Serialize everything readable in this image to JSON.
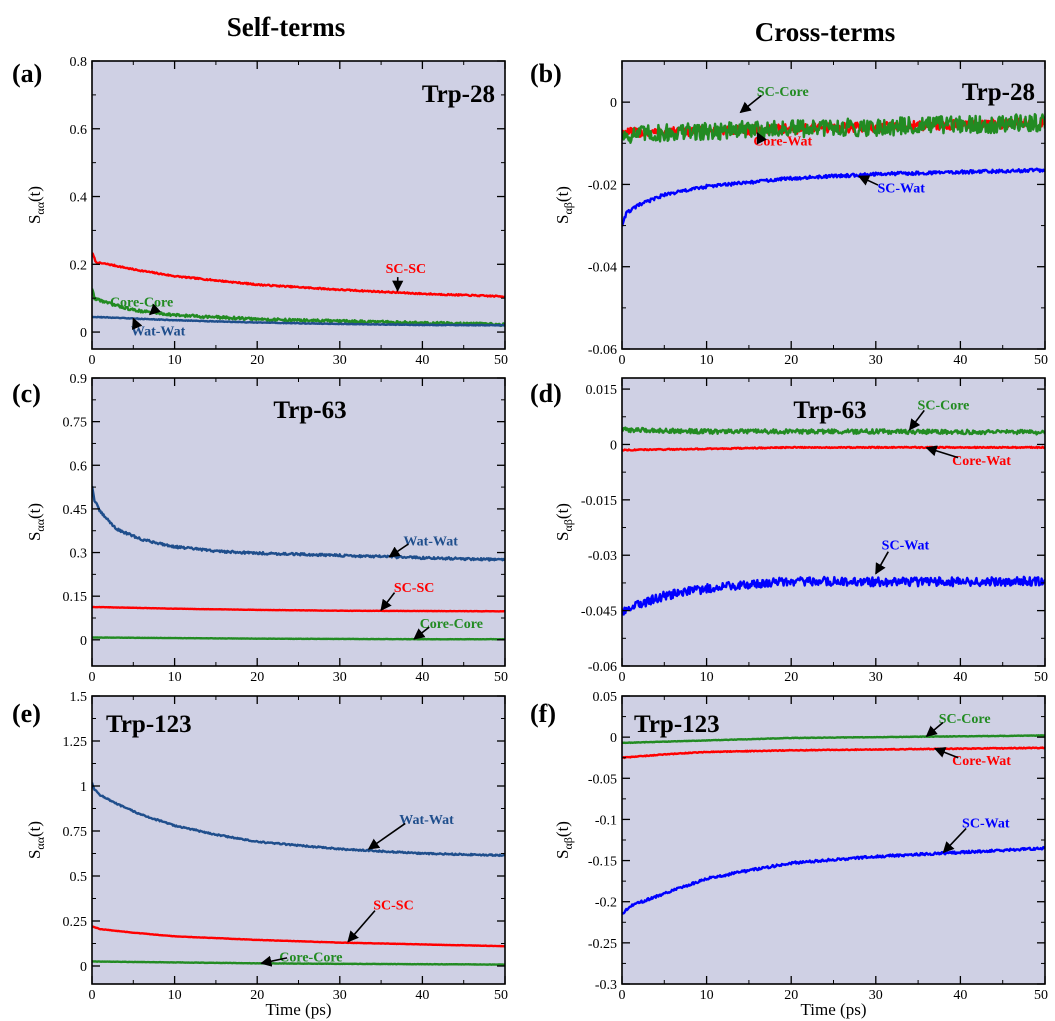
{
  "figure": {
    "column_titles": [
      "Self-terms",
      "Cross-terms"
    ],
    "colors": {
      "background": "#cfd0e4",
      "red": "#ff0000",
      "green": "#228b22",
      "blue": "#0000ff",
      "navy": "#1f4e8c",
      "black": "#000000"
    }
  },
  "chart_data": [
    {
      "type": "line",
      "panel": "(a)",
      "title": "Trp-28",
      "ylabel_main": "S",
      "ylabel_sub": "αα",
      "ylabel_tail": "(t)",
      "xlabel": "",
      "xlim": [
        0,
        50
      ],
      "ylim": [
        -0.05,
        0.8
      ],
      "yticks": [
        0,
        0.2,
        0.4,
        0.6,
        0.8
      ],
      "ytick_labels": [
        "0",
        "0.2",
        "0.4",
        "0.6",
        "0.8"
      ],
      "xticks": [
        0,
        10,
        20,
        30,
        40,
        50
      ],
      "xtick_labels": [
        "0",
        "10",
        "20",
        "30",
        "40",
        "50"
      ],
      "series": [
        {
          "name": "SC-SC",
          "color": "red",
          "noise": 0.002,
          "points": [
            [
              0,
              0.235
            ],
            [
              0.5,
              0.205
            ],
            [
              2,
              0.2
            ],
            [
              5,
              0.185
            ],
            [
              10,
              0.165
            ],
            [
              20,
              0.14
            ],
            [
              30,
              0.125
            ],
            [
              40,
              0.113
            ],
            [
              50,
              0.105
            ]
          ]
        },
        {
          "name": "Core-Core",
          "color": "green",
          "noise": 0.004,
          "points": [
            [
              0,
              0.13
            ],
            [
              0.3,
              0.1
            ],
            [
              2,
              0.085
            ],
            [
              5,
              0.065
            ],
            [
              10,
              0.05
            ],
            [
              20,
              0.038
            ],
            [
              30,
              0.032
            ],
            [
              40,
              0.027
            ],
            [
              50,
              0.022
            ]
          ]
        },
        {
          "name": "Wat-Wat",
          "color": "navy",
          "noise": 0.001,
          "points": [
            [
              0,
              0.045
            ],
            [
              5,
              0.04
            ],
            [
              10,
              0.035
            ],
            [
              20,
              0.028
            ],
            [
              30,
              0.024
            ],
            [
              40,
              0.021
            ],
            [
              50,
              0.02
            ]
          ]
        }
      ],
      "annotations": [
        {
          "text": "SC-SC",
          "color": "red",
          "tx": 38,
          "ty": 0.175,
          "ax": 37,
          "ay": 0.122
        },
        {
          "text": "Core-Core",
          "color": "green",
          "tx": 6,
          "ty": 0.075,
          "ax": 7,
          "ay": 0.052
        },
        {
          "text": "Wat-Wat",
          "color": "navy",
          "tx": 8,
          "ty": -0.01,
          "ax": 5,
          "ay": 0.04
        }
      ]
    },
    {
      "type": "line",
      "panel": "(b)",
      "title": "Trp-28",
      "ylabel_main": "S",
      "ylabel_sub": "αβ",
      "ylabel_tail": "(t)",
      "xlabel": "",
      "xlim": [
        0,
        50
      ],
      "ylim": [
        -0.06,
        0.01
      ],
      "yticks": [
        -0.06,
        -0.04,
        -0.02,
        0
      ],
      "ytick_labels": [
        "-0.06",
        "-0.04",
        "-0.02",
        "0"
      ],
      "xticks": [
        0,
        10,
        20,
        30,
        40,
        50
      ],
      "xtick_labels": [
        "0",
        "10",
        "20",
        "30",
        "40",
        "50"
      ],
      "series": [
        {
          "name": "Core-Wat",
          "color": "red",
          "noise": 0.0012,
          "points": [
            [
              0,
              -0.0075
            ],
            [
              10,
              -0.007
            ],
            [
              20,
              -0.0065
            ],
            [
              30,
              -0.006
            ],
            [
              40,
              -0.0055
            ],
            [
              50,
              -0.005
            ]
          ]
        },
        {
          "name": "SC-Core",
          "color": "green",
          "noise": 0.0022,
          "points": [
            [
              0,
              -0.008
            ],
            [
              10,
              -0.007
            ],
            [
              20,
              -0.0065
            ],
            [
              30,
              -0.006
            ],
            [
              40,
              -0.0055
            ],
            [
              50,
              -0.005
            ]
          ]
        },
        {
          "name": "SC-Wat",
          "color": "blue",
          "noise": 0.0004,
          "points": [
            [
              0,
              -0.03
            ],
            [
              0.5,
              -0.027
            ],
            [
              2,
              -0.025
            ],
            [
              5,
              -0.0225
            ],
            [
              10,
              -0.0205
            ],
            [
              20,
              -0.0185
            ],
            [
              30,
              -0.0175
            ],
            [
              40,
              -0.017
            ],
            [
              50,
              -0.0165
            ]
          ]
        }
      ],
      "annotations": [
        {
          "text": "SC-Core",
          "color": "green",
          "tx": 19,
          "ty": 0.0015,
          "ax": 14,
          "ay": -0.0025
        },
        {
          "text": "Core-Wat",
          "color": "red",
          "tx": 19,
          "ty": -0.0105,
          "ax": 16,
          "ay": -0.0075
        },
        {
          "text": "SC-Wat",
          "color": "blue",
          "tx": 33,
          "ty": -0.022,
          "ax": 28,
          "ay": -0.018
        }
      ]
    },
    {
      "type": "line",
      "panel": "(c)",
      "title": "Trp-63",
      "ylabel_main": "S",
      "ylabel_sub": "αα",
      "ylabel_tail": "(t)",
      "xlabel": "",
      "xlim": [
        0,
        50
      ],
      "ylim": [
        -0.09,
        0.9
      ],
      "yticks": [
        0,
        0.15,
        0.3,
        0.45,
        0.6,
        0.75,
        0.9
      ],
      "ytick_labels": [
        "0",
        "0.15",
        "0.3",
        "0.45",
        "0.6",
        "0.75",
        "0.9"
      ],
      "xticks": [
        0,
        10,
        20,
        30,
        40,
        50
      ],
      "xtick_labels": [
        "0",
        "10",
        "20",
        "30",
        "40",
        "50"
      ],
      "series": [
        {
          "name": "Wat-Wat",
          "color": "navy",
          "noise": 0.004,
          "points": [
            [
              0,
              0.53
            ],
            [
              0.3,
              0.48
            ],
            [
              1,
              0.44
            ],
            [
              3,
              0.38
            ],
            [
              6,
              0.345
            ],
            [
              10,
              0.32
            ],
            [
              15,
              0.305
            ],
            [
              20,
              0.298
            ],
            [
              30,
              0.29
            ],
            [
              40,
              0.282
            ],
            [
              50,
              0.275
            ]
          ]
        },
        {
          "name": "SC-SC",
          "color": "red",
          "noise": 0.0005,
          "points": [
            [
              0,
              0.113
            ],
            [
              10,
              0.107
            ],
            [
              20,
              0.103
            ],
            [
              30,
              0.1
            ],
            [
              40,
              0.099
            ],
            [
              50,
              0.098
            ]
          ]
        },
        {
          "name": "Core-Core",
          "color": "green",
          "noise": 0.0005,
          "points": [
            [
              0,
              0.008
            ],
            [
              10,
              0.006
            ],
            [
              20,
              0.004
            ],
            [
              30,
              0.003
            ],
            [
              40,
              0.002
            ],
            [
              50,
              0.002
            ]
          ]
        }
      ],
      "annotations": [
        {
          "text": "Wat-Wat",
          "color": "navy",
          "tx": 41,
          "ty": 0.325,
          "ax": 36,
          "ay": 0.285
        },
        {
          "text": "SC-SC",
          "color": "red",
          "tx": 39,
          "ty": 0.165,
          "ax": 35,
          "ay": 0.102
        },
        {
          "text": "Core-Core",
          "color": "green",
          "tx": 43.5,
          "ty": 0.04,
          "ax": 39,
          "ay": 0.003
        }
      ]
    },
    {
      "type": "line",
      "panel": "(d)",
      "title": "Trp-63",
      "ylabel_main": "S",
      "ylabel_sub": "αβ",
      "ylabel_tail": "(t)",
      "xlabel": "",
      "xlim": [
        0,
        50
      ],
      "ylim": [
        -0.06,
        0.018
      ],
      "yticks": [
        -0.06,
        -0.045,
        -0.03,
        -0.015,
        0,
        0.015
      ],
      "ytick_labels": [
        "-0.06",
        "-0.045",
        "-0.03",
        "-0.015",
        "0",
        "0.015"
      ],
      "xticks": [
        0,
        10,
        20,
        30,
        40,
        50
      ],
      "xtick_labels": [
        "0",
        "10",
        "20",
        "30",
        "40",
        "50"
      ],
      "series": [
        {
          "name": "SC-Core",
          "color": "green",
          "noise": 0.0006,
          "points": [
            [
              0,
              0.004
            ],
            [
              10,
              0.0035
            ],
            [
              20,
              0.0035
            ],
            [
              30,
              0.0035
            ],
            [
              40,
              0.0034
            ],
            [
              50,
              0.0033
            ]
          ]
        },
        {
          "name": "Core-Wat",
          "color": "red",
          "noise": 0.00015,
          "points": [
            [
              0,
              -0.0015
            ],
            [
              10,
              -0.0012
            ],
            [
              20,
              -0.0008
            ],
            [
              30,
              -0.0008
            ],
            [
              40,
              -0.0008
            ],
            [
              50,
              -0.0008
            ]
          ]
        },
        {
          "name": "SC-Wat",
          "color": "blue",
          "noise": 0.0012,
          "points": [
            [
              0,
              -0.046
            ],
            [
              1,
              -0.044
            ],
            [
              5,
              -0.041
            ],
            [
              10,
              -0.039
            ],
            [
              15,
              -0.0378
            ],
            [
              20,
              -0.037
            ],
            [
              30,
              -0.0372
            ],
            [
              40,
              -0.0372
            ],
            [
              50,
              -0.037
            ]
          ]
        }
      ],
      "annotations": [
        {
          "text": "SC-Core",
          "color": "green",
          "tx": 38,
          "ty": 0.0095,
          "ax": 34,
          "ay": 0.004
        },
        {
          "text": "Core-Wat",
          "color": "red",
          "tx": 42.5,
          "ty": -0.0055,
          "ax": 36,
          "ay": -0.0009
        },
        {
          "text": "SC-Wat",
          "color": "blue",
          "tx": 33.5,
          "ty": -0.0285,
          "ax": 30,
          "ay": -0.035
        }
      ]
    },
    {
      "type": "line",
      "panel": "(e)",
      "title": "Trp-123",
      "ylabel_main": "S",
      "ylabel_sub": "αα",
      "ylabel_tail": "(t)",
      "xlabel": "Time (ps)",
      "xlim": [
        0,
        50
      ],
      "ylim": [
        -0.1,
        1.5
      ],
      "yticks": [
        0,
        0.25,
        0.5,
        0.75,
        1,
        1.25,
        1.5
      ],
      "ytick_labels": [
        "0",
        "0.25",
        "0.5",
        "0.75",
        "1",
        "1.25",
        "1.5"
      ],
      "xticks": [
        0,
        10,
        20,
        30,
        40,
        50
      ],
      "xtick_labels": [
        "0",
        "10",
        "20",
        "30",
        "40",
        "50"
      ],
      "series": [
        {
          "name": "Wat-Wat",
          "color": "navy",
          "noise": 0.004,
          "points": [
            [
              0,
              1.02
            ],
            [
              0.3,
              0.98
            ],
            [
              1,
              0.95
            ],
            [
              3,
              0.9
            ],
            [
              6,
              0.84
            ],
            [
              10,
              0.78
            ],
            [
              15,
              0.73
            ],
            [
              20,
              0.69
            ],
            [
              30,
              0.65
            ],
            [
              40,
              0.625
            ],
            [
              50,
              0.615
            ]
          ]
        },
        {
          "name": "SC-SC",
          "color": "red",
          "noise": 0.001,
          "points": [
            [
              0,
              0.22
            ],
            [
              1,
              0.205
            ],
            [
              5,
              0.185
            ],
            [
              10,
              0.165
            ],
            [
              20,
              0.145
            ],
            [
              30,
              0.13
            ],
            [
              40,
              0.12
            ],
            [
              50,
              0.11
            ]
          ]
        },
        {
          "name": "Core-Core",
          "color": "green",
          "noise": 0.001,
          "points": [
            [
              0,
              0.025
            ],
            [
              10,
              0.02
            ],
            [
              20,
              0.015
            ],
            [
              30,
              0.012
            ],
            [
              40,
              0.01
            ],
            [
              50,
              0.008
            ]
          ]
        }
      ],
      "annotations": [
        {
          "text": "Wat-Wat",
          "color": "navy",
          "tx": 40.5,
          "ty": 0.79,
          "ax": 33.5,
          "ay": 0.65
        },
        {
          "text": "SC-SC",
          "color": "red",
          "tx": 36.5,
          "ty": 0.315,
          "ax": 31,
          "ay": 0.135
        },
        {
          "text": "Core-Core",
          "color": "green",
          "tx": 26.5,
          "ty": 0.025,
          "ax": 20.5,
          "ay": 0.015
        }
      ]
    },
    {
      "type": "line",
      "panel": "(f)",
      "title": "Trp-123",
      "ylabel_main": "S",
      "ylabel_sub": "αβ",
      "ylabel_tail": "(t)",
      "xlabel": "Time (ps)",
      "xlim": [
        0,
        50
      ],
      "ylim": [
        -0.3,
        0.05
      ],
      "yticks": [
        -0.3,
        -0.25,
        -0.2,
        -0.15,
        -0.1,
        -0.05,
        0,
        0.05
      ],
      "ytick_labels": [
        "-0.3",
        "-0.25",
        "-0.2",
        "-0.15",
        "-0.1",
        "-0.05",
        "0",
        "0.05"
      ],
      "xticks": [
        0,
        10,
        20,
        30,
        40,
        50
      ],
      "xtick_labels": [
        "0",
        "10",
        "20",
        "30",
        "40",
        "50"
      ],
      "series": [
        {
          "name": "SC-Core",
          "color": "green",
          "noise": 0.0003,
          "points": [
            [
              0,
              -0.007
            ],
            [
              10,
              -0.004
            ],
            [
              20,
              -0.001
            ],
            [
              30,
              0.0
            ],
            [
              40,
              0.001
            ],
            [
              50,
              0.002
            ]
          ]
        },
        {
          "name": "Core-Wat",
          "color": "red",
          "noise": 0.0005,
          "points": [
            [
              0,
              -0.025
            ],
            [
              5,
              -0.021
            ],
            [
              10,
              -0.018
            ],
            [
              20,
              -0.016
            ],
            [
              30,
              -0.015
            ],
            [
              40,
              -0.014
            ],
            [
              50,
              -0.013
            ]
          ]
        },
        {
          "name": "SC-Wat",
          "color": "blue",
          "noise": 0.0015,
          "points": [
            [
              0,
              -0.215
            ],
            [
              1,
              -0.205
            ],
            [
              5,
              -0.19
            ],
            [
              10,
              -0.172
            ],
            [
              15,
              -0.162
            ],
            [
              20,
              -0.153
            ],
            [
              30,
              -0.145
            ],
            [
              40,
              -0.14
            ],
            [
              50,
              -0.135
            ]
          ]
        }
      ],
      "annotations": [
        {
          "text": "SC-Core",
          "color": "green",
          "tx": 40.5,
          "ty": 0.017,
          "ax": 36,
          "ay": 0.001
        },
        {
          "text": "Core-Wat",
          "color": "red",
          "tx": 42.5,
          "ty": -0.034,
          "ax": 37,
          "ay": -0.014
        },
        {
          "text": "SC-Wat",
          "color": "blue",
          "tx": 43,
          "ty": -0.11,
          "ax": 38,
          "ay": -0.14
        }
      ]
    }
  ]
}
